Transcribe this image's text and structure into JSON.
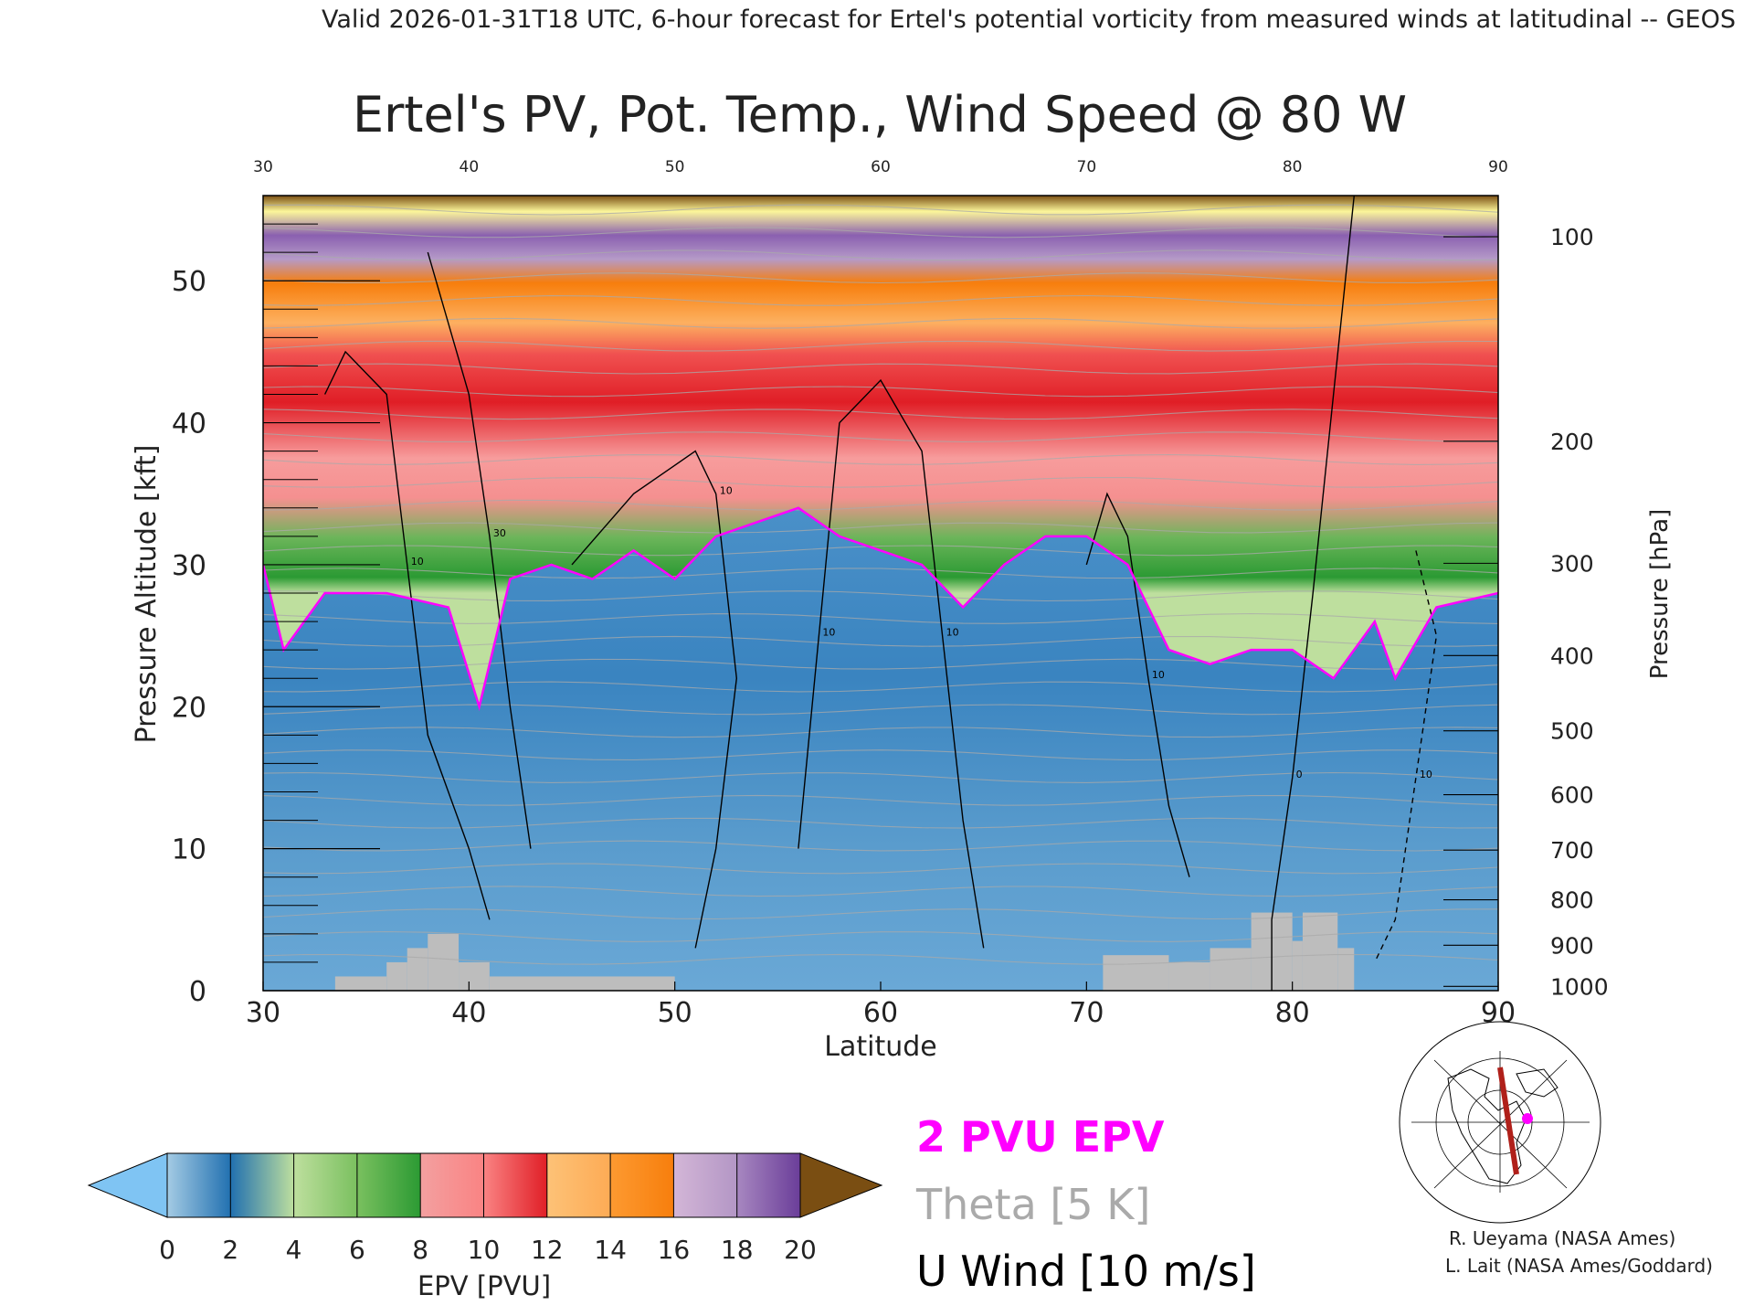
{
  "header": {
    "valid_line": "Valid 2026-01-31T18 UTC, 6-hour forecast for Ertel's potential vorticity from measured winds at latitudinal -- GEOS"
  },
  "chart_data": {
    "type": "heatmap",
    "title": "Ertel's PV, Pot. Temp., Wind Speed @ 80 W",
    "xlabel": "Latitude",
    "ylabel_left": "Pressure Altitude [kft]",
    "ylabel_right": "Pressure [hPa]",
    "xlim": [
      30,
      90
    ],
    "ylim": [
      0,
      56
    ],
    "x_ticks": [
      "30",
      "40",
      "50",
      "60",
      "70",
      "80",
      "90"
    ],
    "top_x_ticks": [
      "30",
      "40",
      "50",
      "60",
      "70",
      "80",
      "90"
    ],
    "y_ticks": [
      "0",
      "10",
      "20",
      "30",
      "40",
      "50"
    ],
    "pressure_ticks": [
      {
        "label": "100",
        "kft": 53.1
      },
      {
        "label": "200",
        "kft": 38.7
      },
      {
        "label": "300",
        "kft": 30.1
      },
      {
        "label": "400",
        "kft": 23.6
      },
      {
        "label": "500",
        "kft": 18.3
      },
      {
        "label": "600",
        "kft": 13.8
      },
      {
        "label": "700",
        "kft": 9.9
      },
      {
        "label": "800",
        "kft": 6.4
      },
      {
        "label": "900",
        "kft": 3.2
      },
      {
        "label": "1000",
        "kft": 0.3
      }
    ],
    "tropopause_2pvu_kft": [
      {
        "lat": 30,
        "kft": 30
      },
      {
        "lat": 31,
        "kft": 24
      },
      {
        "lat": 33,
        "kft": 28
      },
      {
        "lat": 36,
        "kft": 28
      },
      {
        "lat": 39,
        "kft": 27
      },
      {
        "lat": 40.5,
        "kft": 20
      },
      {
        "lat": 42,
        "kft": 29
      },
      {
        "lat": 44,
        "kft": 30
      },
      {
        "lat": 46,
        "kft": 29
      },
      {
        "lat": 48,
        "kft": 31
      },
      {
        "lat": 50,
        "kft": 29
      },
      {
        "lat": 52,
        "kft": 32
      },
      {
        "lat": 54,
        "kft": 33
      },
      {
        "lat": 56,
        "kft": 34
      },
      {
        "lat": 58,
        "kft": 32
      },
      {
        "lat": 60,
        "kft": 31
      },
      {
        "lat": 62,
        "kft": 30
      },
      {
        "lat": 64,
        "kft": 27
      },
      {
        "lat": 66,
        "kft": 30
      },
      {
        "lat": 68,
        "kft": 32
      },
      {
        "lat": 70,
        "kft": 32
      },
      {
        "lat": 72,
        "kft": 30
      },
      {
        "lat": 74,
        "kft": 24
      },
      {
        "lat": 76,
        "kft": 23
      },
      {
        "lat": 78,
        "kft": 24
      },
      {
        "lat": 80,
        "kft": 24
      },
      {
        "lat": 82,
        "kft": 22
      },
      {
        "lat": 84,
        "kft": 26
      },
      {
        "lat": 85,
        "kft": 22
      },
      {
        "lat": 87,
        "kft": 27
      },
      {
        "lat": 90,
        "kft": 28
      }
    ],
    "u_wind_contours": [
      {
        "label": "10",
        "points": [
          [
            33,
            42
          ],
          [
            34,
            45
          ],
          [
            36,
            42
          ],
          [
            37,
            30
          ],
          [
            38,
            18
          ],
          [
            40,
            10
          ],
          [
            41,
            5
          ]
        ]
      },
      {
        "label": "30",
        "points": [
          [
            38,
            52
          ],
          [
            40,
            42
          ],
          [
            41,
            32
          ],
          [
            42,
            20
          ],
          [
            43,
            10
          ]
        ]
      },
      {
        "label": "10",
        "points": [
          [
            45,
            30
          ],
          [
            48,
            35
          ],
          [
            51,
            38
          ],
          [
            52,
            35
          ],
          [
            53,
            22
          ],
          [
            52,
            10
          ],
          [
            51,
            3
          ]
        ]
      },
      {
        "label": "10",
        "points": [
          [
            58,
            40
          ],
          [
            60,
            43
          ],
          [
            62,
            38
          ],
          [
            63,
            25
          ],
          [
            64,
            12
          ],
          [
            65,
            3
          ]
        ]
      },
      {
        "label": "10",
        "points": [
          [
            56,
            10
          ],
          [
            57,
            25
          ],
          [
            58,
            40
          ]
        ]
      },
      {
        "label": "10",
        "points": [
          [
            70,
            30
          ],
          [
            71,
            35
          ],
          [
            72,
            32
          ],
          [
            73,
            22
          ],
          [
            74,
            13
          ],
          [
            75,
            8
          ]
        ]
      },
      {
        "label": "0",
        "points": [
          [
            83,
            56
          ],
          [
            82,
            42
          ],
          [
            81,
            28
          ],
          [
            80,
            15
          ],
          [
            79,
            5
          ],
          [
            79,
            0
          ]
        ]
      }
    ],
    "u_wind_dashed": {
      "label": "10",
      "points": [
        [
          86,
          31
        ],
        [
          87,
          25
        ],
        [
          86,
          15
        ],
        [
          85,
          5
        ],
        [
          84,
          2
        ]
      ]
    },
    "topography_blocks": [
      {
        "lat0": 33.5,
        "lat1": 36,
        "kft": 1
      },
      {
        "lat0": 36,
        "lat1": 37,
        "kft": 2
      },
      {
        "lat0": 37,
        "lat1": 38,
        "kft": 3
      },
      {
        "lat0": 38,
        "lat1": 39.5,
        "kft": 4
      },
      {
        "lat0": 39.5,
        "lat1": 41,
        "kft": 2
      },
      {
        "lat0": 41,
        "lat1": 50,
        "kft": 1
      },
      {
        "lat0": 70.8,
        "lat1": 74,
        "kft": 2.5
      },
      {
        "lat0": 74,
        "lat1": 76,
        "kft": 2
      },
      {
        "lat0": 76,
        "lat1": 78,
        "kft": 3
      },
      {
        "lat0": 78,
        "lat1": 80,
        "kft": 5.5
      },
      {
        "lat0": 80,
        "lat1": 80.5,
        "kft": 3.5
      },
      {
        "lat0": 80.5,
        "lat1": 82.2,
        "kft": 5.5
      },
      {
        "lat0": 82.2,
        "lat1": 83,
        "kft": 3
      }
    ]
  },
  "colorbar": {
    "label": "EPV [PVU]",
    "ticks": [
      "0",
      "2",
      "4",
      "6",
      "8",
      "10",
      "12",
      "14",
      "16",
      "18",
      "20"
    ],
    "under_color": "#7fc4f3",
    "over_color": "#7a4e12",
    "bands": [
      [
        "#a4cbe4",
        "#2170b0"
      ],
      [
        "#2170b0",
        "#bedf9e"
      ],
      [
        "#bedf9e",
        "#7ac05f"
      ],
      [
        "#7ac05f",
        "#2b9a33"
      ],
      [
        "#f3a0a0",
        "#fa8383"
      ],
      [
        "#fa8383",
        "#e01e26"
      ],
      [
        "#fdc277",
        "#fdab55"
      ],
      [
        "#fd9a31",
        "#f77e0c"
      ],
      [
        "#d3b6d7",
        "#b396c5"
      ],
      [
        "#a787c0",
        "#6a3d99"
      ],
      [
        "#fcf69a",
        "#dfb26b"
      ]
    ]
  },
  "legend": {
    "pvu": "2 PVU EPV",
    "theta": "Theta [5 K]",
    "uwind": "U Wind [10 m/s]",
    "pvu_color": "#ff00ff",
    "theta_color": "#aaaaaa",
    "uwind_color": "#000000"
  },
  "credits": {
    "line1": "R. Ueyama (NASA Ames)",
    "line2": "L. Lait (NASA Ames/Goddard)"
  }
}
